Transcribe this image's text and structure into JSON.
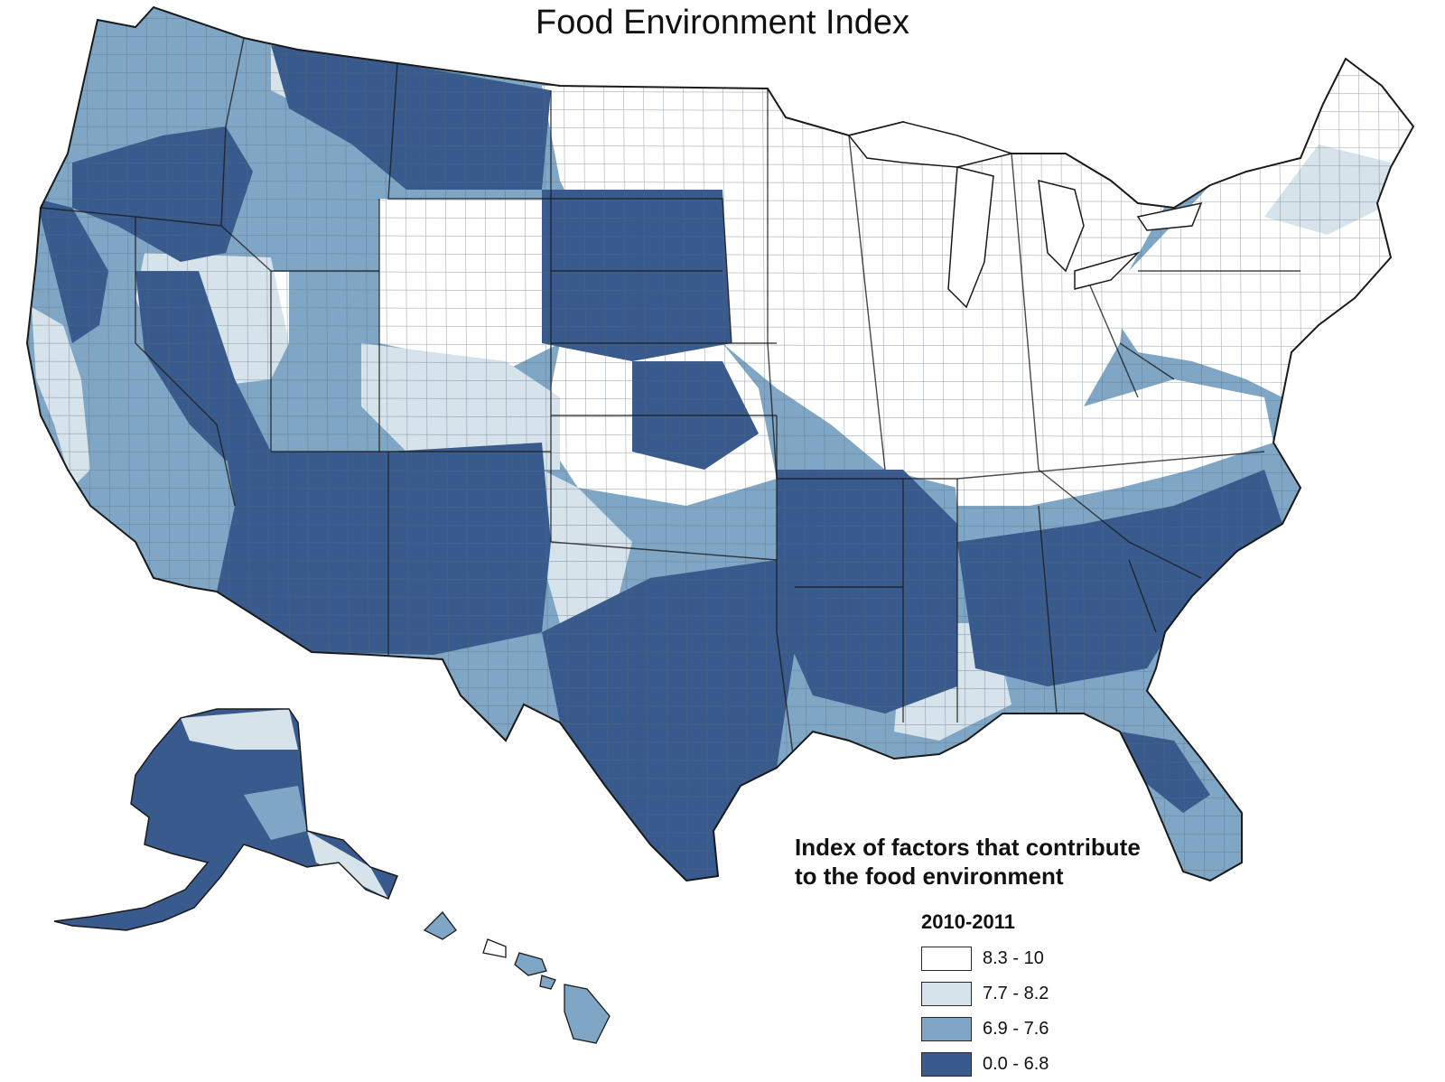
{
  "title": "Food Environment Index",
  "legend": {
    "heading_lines": [
      "Index of factors that contribute",
      "to the food environment"
    ],
    "period": "2010-2011",
    "classes": [
      {
        "label": "8.3 - 10",
        "color": "#ffffff"
      },
      {
        "label": "7.7 - 8.2",
        "color": "#d6e3ea"
      },
      {
        "label": "6.9 - 7.6",
        "color": "#7fa6c4"
      },
      {
        "label": "0.0 - 6.8",
        "color": "#385a8c"
      }
    ]
  },
  "colors": {
    "outline": "#1a1a1a",
    "county_border": "#5a6b80",
    "background": "#ffffff"
  }
}
